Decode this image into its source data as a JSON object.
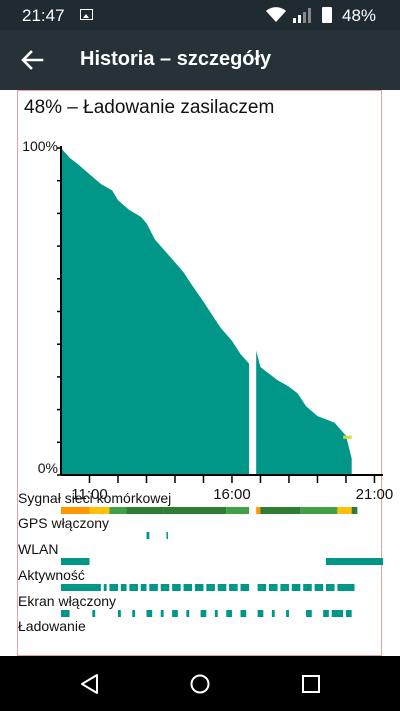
{
  "status_bar": {
    "time": "21:47",
    "battery": "48%",
    "icons": [
      "image-icon",
      "wifi-icon",
      "signal-icon",
      "battery-icon"
    ]
  },
  "app_bar": {
    "title": "Historia – szczegóły",
    "back_icon": "arrow-left-icon"
  },
  "summary": "48% – Ładowanie zasilaczem",
  "chart_data": {
    "type": "area",
    "title": "48% – Ładowanie zasilaczem",
    "color": "#009688",
    "y_tick_labels": [
      "100%",
      "0%"
    ],
    "x_tick_labels": [
      "11:00",
      "16:00",
      "21:00"
    ],
    "ylim": [
      0,
      100
    ],
    "x_unit": "hours",
    "xlim": [
      10.0,
      21.3
    ],
    "battery_series": [
      {
        "x": [
          10.0,
          10.3,
          10.6,
          11.0,
          11.4,
          11.8,
          12.0,
          12.4,
          12.8,
          13.0,
          13.3,
          13.6,
          14.0,
          14.3,
          14.6,
          15.0,
          15.3,
          15.6,
          16.0,
          16.3,
          16.6
        ],
        "y": [
          100,
          97,
          95,
          92,
          89,
          87,
          84,
          81,
          79,
          77,
          72,
          69,
          65,
          62,
          58,
          53,
          49,
          45,
          41,
          37,
          34
        ]
      },
      {
        "x": [
          16.85,
          17.0,
          17.3,
          17.6,
          18.0,
          18.3,
          18.6,
          19.0,
          19.3,
          19.6,
          20.0,
          20.2
        ],
        "y": [
          38,
          33,
          31,
          29,
          27,
          25,
          21,
          18,
          17,
          16,
          12,
          5
        ]
      }
    ],
    "charging_segment": {
      "x": [
        19.9,
        20.2
      ],
      "color": "#cddc39"
    }
  },
  "rows": [
    {
      "label": "Sygnał sieci komórkowej",
      "segments": [
        {
          "x0": 10.0,
          "x1": 11.0,
          "c": "#ff9800"
        },
        {
          "x0": 11.0,
          "x1": 11.7,
          "c": "#ffc107"
        },
        {
          "x0": 11.7,
          "x1": 12.3,
          "c": "#43a047"
        },
        {
          "x0": 12.3,
          "x1": 13.6,
          "c": "#2e7d32"
        },
        {
          "x0": 13.6,
          "x1": 15.8,
          "c": "#2e7d32"
        },
        {
          "x0": 15.8,
          "x1": 16.6,
          "c": "#43a047"
        },
        {
          "x0": 16.85,
          "x1": 17.0,
          "c": "#ff9800"
        },
        {
          "x0": 17.0,
          "x1": 18.4,
          "c": "#2e7d32"
        },
        {
          "x0": 18.4,
          "x1": 19.7,
          "c": "#43a047"
        },
        {
          "x0": 19.7,
          "x1": 20.2,
          "c": "#ffc107"
        },
        {
          "x0": 20.2,
          "x1": 20.4,
          "c": "#2e7d32"
        }
      ]
    },
    {
      "label": "GPS włączony",
      "segments": [
        {
          "x0": 13.0,
          "x1": 13.1,
          "c": "#009688"
        },
        {
          "x0": 13.7,
          "x1": 13.75,
          "c": "#009688"
        }
      ]
    },
    {
      "label": "WLAN",
      "segments": [
        {
          "x0": 10.0,
          "x1": 11.0,
          "c": "#009688"
        },
        {
          "x0": 19.3,
          "x1": 21.3,
          "c": "#009688"
        }
      ]
    },
    {
      "label": "Aktywność",
      "segments": [
        {
          "x0": 10.0,
          "x1": 11.4,
          "c": "#009688"
        },
        {
          "x0": 11.5,
          "x1": 11.6,
          "c": "#009688"
        },
        {
          "x0": 11.7,
          "x1": 12.0,
          "c": "#009688"
        },
        {
          "x0": 12.1,
          "x1": 12.3,
          "c": "#009688"
        },
        {
          "x0": 12.4,
          "x1": 12.7,
          "c": "#009688"
        },
        {
          "x0": 12.8,
          "x1": 13.0,
          "c": "#009688"
        },
        {
          "x0": 13.1,
          "x1": 13.4,
          "c": "#009688"
        },
        {
          "x0": 13.5,
          "x1": 13.8,
          "c": "#009688"
        },
        {
          "x0": 13.9,
          "x1": 14.2,
          "c": "#009688"
        },
        {
          "x0": 14.3,
          "x1": 14.6,
          "c": "#009688"
        },
        {
          "x0": 14.7,
          "x1": 15.0,
          "c": "#009688"
        },
        {
          "x0": 15.1,
          "x1": 15.4,
          "c": "#009688"
        },
        {
          "x0": 15.5,
          "x1": 15.8,
          "c": "#009688"
        },
        {
          "x0": 15.9,
          "x1": 16.2,
          "c": "#009688"
        },
        {
          "x0": 16.3,
          "x1": 16.6,
          "c": "#009688"
        },
        {
          "x0": 16.9,
          "x1": 17.2,
          "c": "#009688"
        },
        {
          "x0": 17.3,
          "x1": 17.6,
          "c": "#009688"
        },
        {
          "x0": 17.7,
          "x1": 18.0,
          "c": "#009688"
        },
        {
          "x0": 18.1,
          "x1": 18.4,
          "c": "#009688"
        },
        {
          "x0": 18.5,
          "x1": 18.8,
          "c": "#009688"
        },
        {
          "x0": 18.9,
          "x1": 19.2,
          "c": "#009688"
        },
        {
          "x0": 19.3,
          "x1": 19.6,
          "c": "#009688"
        },
        {
          "x0": 19.7,
          "x1": 20.0,
          "c": "#009688"
        },
        {
          "x0": 20.0,
          "x1": 20.3,
          "c": "#009688"
        }
      ]
    },
    {
      "label": "Ekran włączony",
      "segments": [
        {
          "x0": 10.0,
          "x1": 10.3,
          "c": "#009688"
        },
        {
          "x0": 11.1,
          "x1": 11.2,
          "c": "#009688"
        },
        {
          "x0": 12.0,
          "x1": 12.1,
          "c": "#009688"
        },
        {
          "x0": 12.5,
          "x1": 12.6,
          "c": "#009688"
        },
        {
          "x0": 13.0,
          "x1": 13.2,
          "c": "#009688"
        },
        {
          "x0": 13.5,
          "x1": 13.6,
          "c": "#009688"
        },
        {
          "x0": 13.9,
          "x1": 14.1,
          "c": "#009688"
        },
        {
          "x0": 14.4,
          "x1": 14.5,
          "c": "#009688"
        },
        {
          "x0": 14.9,
          "x1": 15.1,
          "c": "#009688"
        },
        {
          "x0": 15.4,
          "x1": 15.5,
          "c": "#009688"
        },
        {
          "x0": 15.8,
          "x1": 16.0,
          "c": "#009688"
        },
        {
          "x0": 16.3,
          "x1": 16.5,
          "c": "#009688"
        },
        {
          "x0": 16.9,
          "x1": 17.1,
          "c": "#009688"
        },
        {
          "x0": 17.4,
          "x1": 17.5,
          "c": "#009688"
        },
        {
          "x0": 17.9,
          "x1": 18.0,
          "c": "#009688"
        },
        {
          "x0": 18.6,
          "x1": 18.8,
          "c": "#009688"
        },
        {
          "x0": 19.2,
          "x1": 19.4,
          "c": "#009688"
        },
        {
          "x0": 19.5,
          "x1": 19.9,
          "c": "#009688"
        },
        {
          "x0": 20.0,
          "x1": 20.2,
          "c": "#009688"
        }
      ]
    },
    {
      "label": "Ładowanie",
      "segments": []
    }
  ],
  "nav_bar": {
    "icons": [
      "back-triangle-icon",
      "home-circle-icon",
      "recents-square-icon"
    ]
  }
}
